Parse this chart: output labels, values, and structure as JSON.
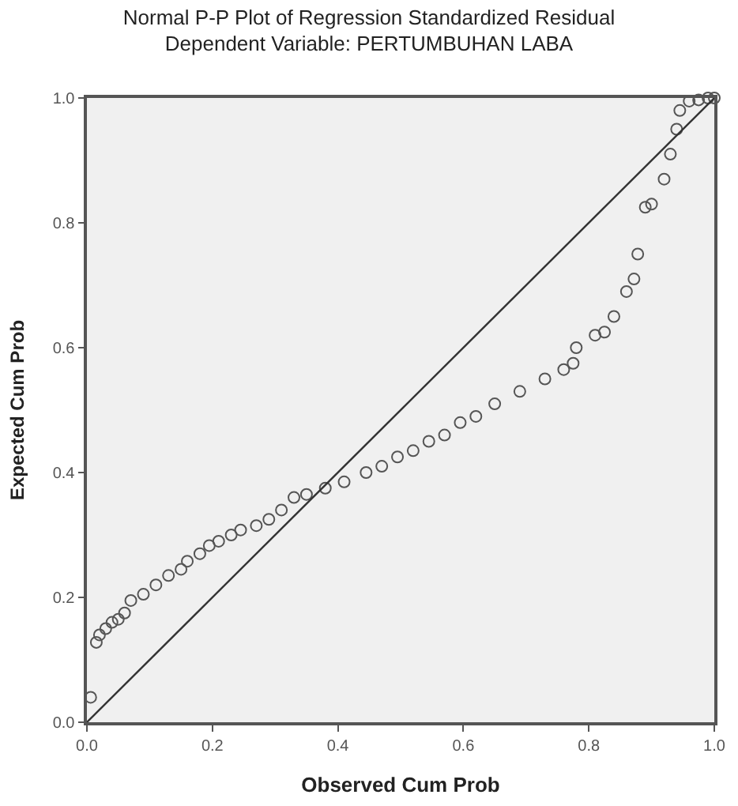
{
  "chart_data": {
    "type": "scatter",
    "title": "Normal P-P Plot of Regression Standardized Residual",
    "subtitle": "Dependent Variable: PERTUMBUHAN LABA",
    "xlabel": "Observed Cum Prob",
    "ylabel": "Expected Cum Prob",
    "xlim": [
      0,
      1
    ],
    "ylim": [
      0,
      1
    ],
    "xticks": [
      {
        "value": 0,
        "label": "0.0"
      },
      {
        "value": 0.2,
        "label": "0.2"
      },
      {
        "value": 0.4,
        "label": "0.4"
      },
      {
        "value": 0.6,
        "label": "0.6"
      },
      {
        "value": 0.8,
        "label": "0.8"
      },
      {
        "value": 1,
        "label": "1.0"
      }
    ],
    "yticks": [
      {
        "value": 0,
        "label": "0.0"
      },
      {
        "value": 0.2,
        "label": "0.2"
      },
      {
        "value": 0.4,
        "label": "0.4"
      },
      {
        "value": 0.6,
        "label": "0.6"
      },
      {
        "value": 0.8,
        "label": "0.8"
      },
      {
        "value": 1,
        "label": "1.0"
      }
    ],
    "grid": false,
    "series": [
      {
        "marker": "circle",
        "color": "#555555",
        "x": [
          0.006,
          0.015,
          0.02,
          0.03,
          0.04,
          0.05,
          0.06,
          0.07,
          0.09,
          0.11,
          0.13,
          0.15,
          0.16,
          0.18,
          0.195,
          0.21,
          0.23,
          0.245,
          0.27,
          0.29,
          0.31,
          0.33,
          0.35,
          0.38,
          0.41,
          0.445,
          0.47,
          0.495,
          0.52,
          0.545,
          0.57,
          0.595,
          0.62,
          0.65,
          0.69,
          0.73,
          0.76,
          0.775,
          0.78,
          0.81,
          0.825,
          0.84,
          0.86,
          0.872,
          0.878,
          0.89,
          0.9,
          0.92,
          0.93,
          0.94,
          0.945,
          0.96,
          0.975,
          0.99,
          1.0
        ],
        "values": [
          0.04,
          0.128,
          0.14,
          0.15,
          0.16,
          0.165,
          0.175,
          0.195,
          0.205,
          0.22,
          0.235,
          0.245,
          0.258,
          0.27,
          0.283,
          0.29,
          0.3,
          0.308,
          0.315,
          0.325,
          0.34,
          0.36,
          0.365,
          0.375,
          0.385,
          0.4,
          0.41,
          0.425,
          0.435,
          0.45,
          0.46,
          0.48,
          0.49,
          0.51,
          0.53,
          0.55,
          0.565,
          0.575,
          0.6,
          0.62,
          0.625,
          0.65,
          0.69,
          0.71,
          0.75,
          0.825,
          0.83,
          0.87,
          0.91,
          0.95,
          0.98,
          0.995,
          0.997,
          1.0,
          1.0
        ]
      },
      {
        "type": "line",
        "marker": "none",
        "color": "#333333",
        "line_style": "solid",
        "x": [
          0,
          1
        ],
        "values": [
          0,
          1
        ]
      }
    ]
  }
}
